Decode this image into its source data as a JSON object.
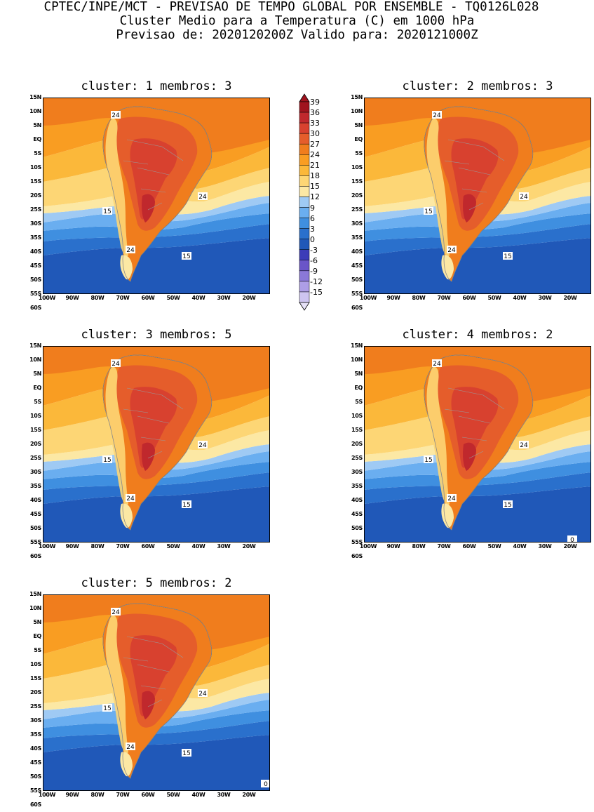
{
  "header": {
    "line1": "CPTEC/INPE/MCT - PREVISAO DE TEMPO GLOBAL POR ENSEMBLE - TQ0126L028",
    "line2": "Cluster Medio para a Temperatura (C) em 1000 hPa",
    "line3": "Previsao de: 2020120200Z   Valido para: 2020121000Z"
  },
  "axes": {
    "lat_labels": [
      "15N",
      "10N",
      "5N",
      "EQ",
      "5S",
      "10S",
      "15S",
      "20S",
      "25S",
      "30S",
      "35S",
      "40S",
      "45S",
      "50S",
      "55S",
      "60S"
    ],
    "lon_labels": [
      "100W",
      "90W",
      "80W",
      "70W",
      "60W",
      "50W",
      "40W",
      "30W",
      "20W"
    ],
    "lat_range": [
      -60,
      15
    ],
    "lon_range": [
      -100,
      -10
    ]
  },
  "colorbar": {
    "labels": [
      "39",
      "36",
      "33",
      "30",
      "27",
      "24",
      "21",
      "18",
      "15",
      "12",
      "9",
      "6",
      "3",
      "0",
      "-3",
      "-6",
      "-9",
      "-12",
      "-15"
    ],
    "colors": [
      "#a0141e",
      "#c0282d",
      "#d8412f",
      "#e55d2b",
      "#f07d1d",
      "#f99d22",
      "#fbb83a",
      "#fdd675",
      "#fce8a4",
      "#9fcaf4",
      "#6aaef0",
      "#3f8fe0",
      "#2a70cc",
      "#2058b8",
      "#3c3cb8",
      "#6a55c8",
      "#8a78d8",
      "#ad9ee6",
      "#cdc4f0"
    ]
  },
  "panels": [
    {
      "title": "cluster: 1   membros: 3",
      "label_24a": "24",
      "label_24b": "24",
      "label_24c": "24",
      "label_15a": "15",
      "label_15b": "15",
      "label_0": ""
    },
    {
      "title": "cluster: 2   membros: 3",
      "label_24a": "24",
      "label_24b": "24",
      "label_24c": "24",
      "label_15a": "15",
      "label_15b": "15",
      "label_0": ""
    },
    {
      "title": "cluster: 3   membros: 5",
      "label_24a": "24",
      "label_24b": "24",
      "label_24c": "24",
      "label_15a": "15",
      "label_15b": "15",
      "label_0": ""
    },
    {
      "title": "cluster: 4   membros: 2",
      "label_24a": "24",
      "label_24b": "24",
      "label_24c": "24",
      "label_15a": "15",
      "label_15b": "15",
      "label_0": "0"
    },
    {
      "title": "cluster: 5   membros: 2",
      "label_24a": "24",
      "label_24b": "24",
      "label_24c": "24",
      "label_15a": "15",
      "label_15b": "15",
      "label_0": "0"
    }
  ]
}
